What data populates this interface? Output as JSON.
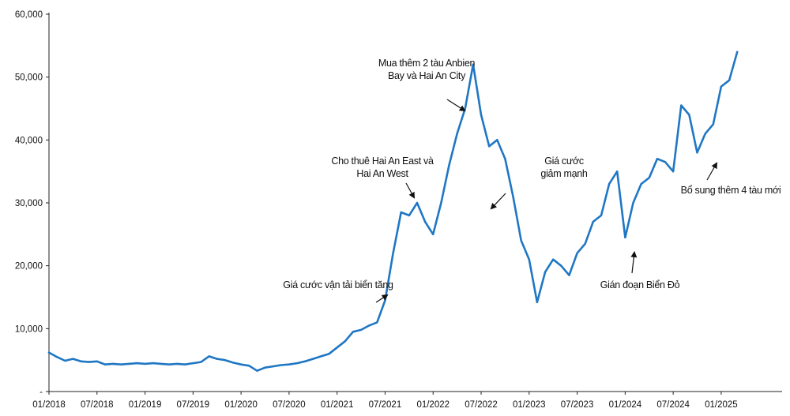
{
  "chart_data": {
    "type": "line",
    "title": "",
    "xlabel": "",
    "ylabel": "",
    "ylim": [
      0,
      60000
    ],
    "grid": false,
    "color": "#1f77c4",
    "y_ticks": [
      {
        "value": 0,
        "label": "-"
      },
      {
        "value": 10000,
        "label": "10,000"
      },
      {
        "value": 20000,
        "label": "20,000"
      },
      {
        "value": 30000,
        "label": "30,000"
      },
      {
        "value": 40000,
        "label": "40,000"
      },
      {
        "value": 50000,
        "label": "50,000"
      },
      {
        "value": 60000,
        "label": "60,000"
      }
    ],
    "x_ticks": [
      "01/2018",
      "07/2018",
      "01/2019",
      "07/2019",
      "01/2020",
      "07/2020",
      "01/2021",
      "07/2021",
      "01/2022",
      "07/2022",
      "01/2023",
      "07/2023",
      "01/2024",
      "07/2024",
      "01/2025"
    ],
    "x_start": "2018-01",
    "x_end": "2025-02",
    "series": [
      {
        "points": [
          [
            "2018-01",
            6200
          ],
          [
            "2018-02",
            5500
          ],
          [
            "2018-03",
            4900
          ],
          [
            "2018-04",
            5200
          ],
          [
            "2018-05",
            4800
          ],
          [
            "2018-06",
            4700
          ],
          [
            "2018-07",
            4800
          ],
          [
            "2018-08",
            4300
          ],
          [
            "2018-09",
            4400
          ],
          [
            "2018-10",
            4300
          ],
          [
            "2018-11",
            4400
          ],
          [
            "2018-12",
            4500
          ],
          [
            "2019-01",
            4400
          ],
          [
            "2019-02",
            4500
          ],
          [
            "2019-03",
            4400
          ],
          [
            "2019-04",
            4300
          ],
          [
            "2019-05",
            4400
          ],
          [
            "2019-06",
            4300
          ],
          [
            "2019-07",
            4500
          ],
          [
            "2019-08",
            4700
          ],
          [
            "2019-09",
            5600
          ],
          [
            "2019-10",
            5200
          ],
          [
            "2019-11",
            5000
          ],
          [
            "2019-12",
            4600
          ],
          [
            "2020-01",
            4300
          ],
          [
            "2020-02",
            4100
          ],
          [
            "2020-03",
            3300
          ],
          [
            "2020-04",
            3800
          ],
          [
            "2020-05",
            4000
          ],
          [
            "2020-06",
            4200
          ],
          [
            "2020-07",
            4300
          ],
          [
            "2020-08",
            4500
          ],
          [
            "2020-09",
            4800
          ],
          [
            "2020-10",
            5200
          ],
          [
            "2020-11",
            5600
          ],
          [
            "2020-12",
            6000
          ],
          [
            "2021-01",
            7000
          ],
          [
            "2021-02",
            8000
          ],
          [
            "2021-03",
            9500
          ],
          [
            "2021-04",
            9800
          ],
          [
            "2021-05",
            10500
          ],
          [
            "2021-06",
            11000
          ],
          [
            "2021-07",
            14500
          ],
          [
            "2021-08",
            22000
          ],
          [
            "2021-09",
            28500
          ],
          [
            "2021-10",
            28000
          ],
          [
            "2021-11",
            30000
          ],
          [
            "2021-12",
            27000
          ],
          [
            "2022-01",
            25000
          ],
          [
            "2022-02",
            30000
          ],
          [
            "2022-03",
            36000
          ],
          [
            "2022-04",
            41000
          ],
          [
            "2022-05",
            45000
          ],
          [
            "2022-06",
            52000
          ],
          [
            "2022-07",
            44000
          ],
          [
            "2022-08",
            39000
          ],
          [
            "2022-09",
            40000
          ],
          [
            "2022-10",
            37000
          ],
          [
            "2022-11",
            31000
          ],
          [
            "2022-12",
            24000
          ],
          [
            "2023-01",
            21000
          ],
          [
            "2023-02",
            14200
          ],
          [
            "2023-03",
            19000
          ],
          [
            "2023-04",
            21000
          ],
          [
            "2023-05",
            20000
          ],
          [
            "2023-06",
            18500
          ],
          [
            "2023-07",
            22000
          ],
          [
            "2023-08",
            23500
          ],
          [
            "2023-09",
            27000
          ],
          [
            "2023-10",
            28000
          ],
          [
            "2023-11",
            33000
          ],
          [
            "2023-12",
            35000
          ],
          [
            "2024-01",
            24500
          ],
          [
            "2024-02",
            30000
          ],
          [
            "2024-03",
            33000
          ],
          [
            "2024-04",
            34000
          ],
          [
            "2024-05",
            37000
          ],
          [
            "2024-06",
            36500
          ],
          [
            "2024-07",
            35000
          ],
          [
            "2024-08",
            45500
          ],
          [
            "2024-09",
            44000
          ],
          [
            "2024-10",
            38000
          ],
          [
            "2024-11",
            41000
          ],
          [
            "2024-12",
            42500
          ],
          [
            "2025-01",
            48500
          ],
          [
            "2025-02",
            49500
          ],
          [
            "2025-03",
            54000
          ]
        ]
      }
    ],
    "annotations": [
      {
        "lines": [
          "Mua thêm 2 tàu Anbien",
          "Bay và Hai An City"
        ]
      },
      {
        "lines": [
          "Cho thuê Hai An East và",
          "Hai An West"
        ]
      },
      {
        "lines": [
          "Giá cước",
          "giảm mạnh"
        ]
      },
      {
        "lines": [
          "Giá cước vận tải biển tăng"
        ]
      },
      {
        "lines": [
          "Gián đoạn Biển Đỏ"
        ]
      },
      {
        "lines": [
          "Bổ sung thêm 4 tàu mới"
        ]
      }
    ]
  }
}
